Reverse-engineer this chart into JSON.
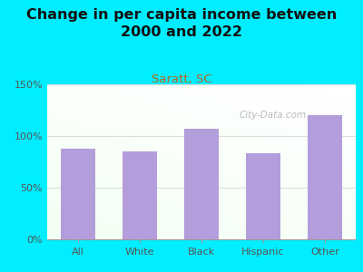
{
  "title": "Change in per capita income between\n2000 and 2022",
  "subtitle": "Saratt, SC",
  "categories": [
    "All",
    "White",
    "Black",
    "Hispanic",
    "Other"
  ],
  "values": [
    88,
    85,
    107,
    83,
    120
  ],
  "bar_color": "#b39ddb",
  "title_fontsize": 11.5,
  "subtitle_fontsize": 9.5,
  "subtitle_color": "#b5651d",
  "background_outer": "#00eeff",
  "ylim": [
    0,
    150
  ],
  "yticks": [
    0,
    50,
    100,
    150
  ],
  "ytick_labels": [
    "0%",
    "50%",
    "100%",
    "150%"
  ],
  "watermark": "City-Data.com",
  "watermark_color": "#aaaaaa",
  "grid_color": "#dddddd",
  "tick_color": "#555555"
}
